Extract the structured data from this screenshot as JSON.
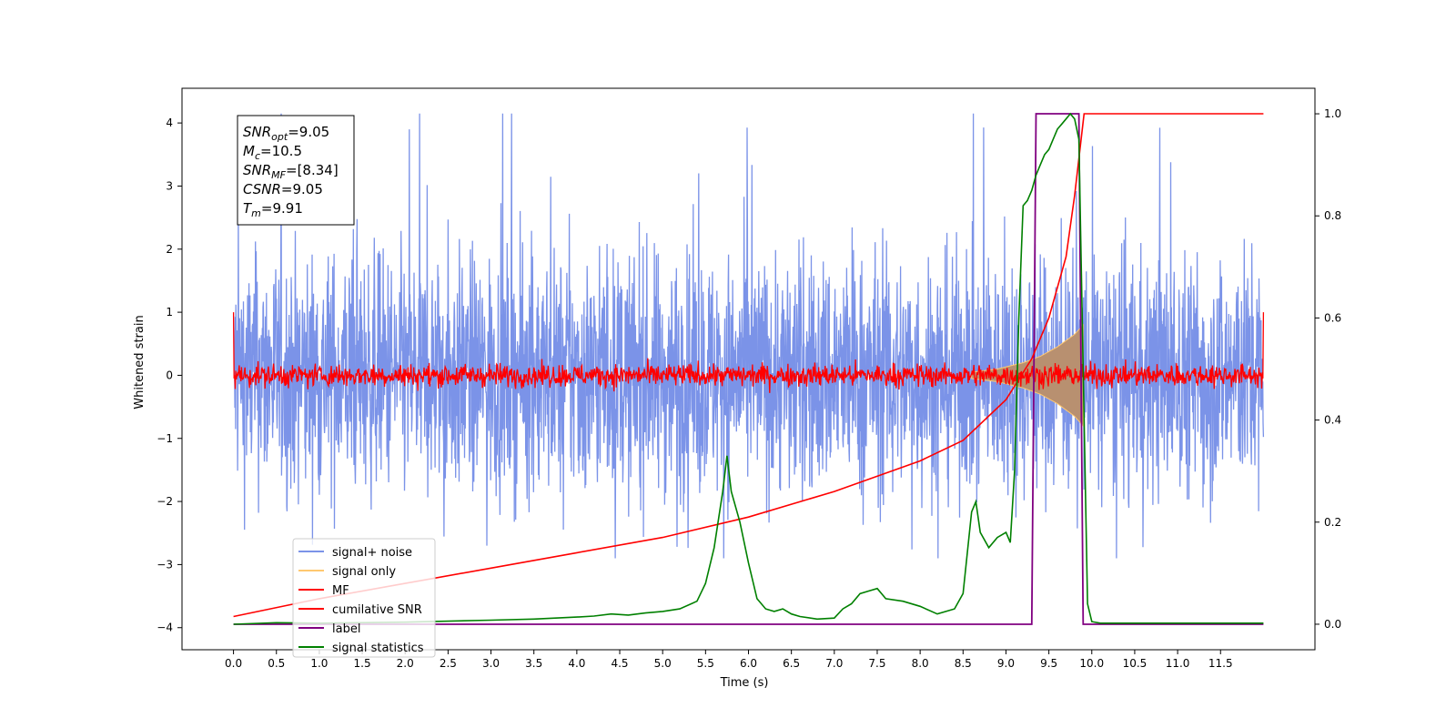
{
  "chart_data": {
    "type": "line",
    "xlabel": "Time (s)",
    "ylabel": "Whitened strain",
    "xlim": [
      -0.6,
      12.6
    ],
    "ylim_left": [
      -4.35,
      4.55
    ],
    "ylim_right": [
      -0.05,
      1.05
    ],
    "x_ticks": [
      "0.0",
      "0.5",
      "1.0",
      "1.5",
      "2.0",
      "2.5",
      "3.0",
      "3.5",
      "4.0",
      "4.5",
      "5.0",
      "5.5",
      "6.0",
      "6.5",
      "7.0",
      "7.5",
      "8.0",
      "8.5",
      "9.0",
      "9.5",
      "10.0",
      "10.5",
      "11.0",
      "11.5"
    ],
    "y_left_ticks": [
      "4",
      "3",
      "2",
      "1",
      "0",
      "−1",
      "−2",
      "−3",
      "−4"
    ],
    "y_right_ticks": [
      "1.0",
      "0.8",
      "0.6",
      "0.4",
      "0.2",
      "0.0"
    ],
    "grid": false,
    "legend_position": "lower-left",
    "annotation": {
      "lines": [
        {
          "var": "SNR",
          "sub": "opt",
          "val": "=9.05"
        },
        {
          "var": "M",
          "sub": "c",
          "val": "=10.5"
        },
        {
          "var": "SNR",
          "sub": "MF",
          "val": "=[8.34]"
        },
        {
          "var": "CSNR",
          "sub": "",
          "val": "=9.05"
        },
        {
          "var": "T",
          "sub": "m",
          "val": "=9.91"
        }
      ]
    },
    "series": [
      {
        "name": "signal+ noise",
        "color": "#7b93e8",
        "axis": "left",
        "x_range": [
          0.0,
          12.0
        ],
        "envelope": [
          -2.9,
          4.15
        ],
        "typical_amplitude": 1.6
      },
      {
        "name": "signal only",
        "color": "#ffc870",
        "axis": "left",
        "x": [
          8.6,
          8.9,
          9.2,
          9.4,
          9.6,
          9.8,
          9.9
        ],
        "y_amplitude": [
          0.05,
          0.1,
          0.2,
          0.3,
          0.45,
          0.65,
          0.8
        ]
      },
      {
        "name": "MF",
        "color": "#ff0000",
        "axis": "left",
        "x_range": [
          0.0,
          12.0
        ],
        "envelope": [
          -0.4,
          1.0
        ],
        "typical_amplitude": 0.2
      },
      {
        "name": "cumilative SNR",
        "color": "#ff0000",
        "axis": "right",
        "x": [
          0.0,
          1.0,
          2.0,
          3.0,
          4.0,
          5.0,
          6.0,
          7.0,
          8.0,
          8.5,
          9.0,
          9.3,
          9.5,
          9.7,
          9.8,
          9.91,
          12.0
        ],
        "y": [
          0.015,
          0.05,
          0.08,
          0.11,
          0.14,
          0.17,
          0.21,
          0.26,
          0.32,
          0.36,
          0.44,
          0.52,
          0.6,
          0.72,
          0.84,
          1.0,
          1.0
        ]
      },
      {
        "name": "label",
        "color": "#800080",
        "axis": "right",
        "x": [
          0.0,
          9.3,
          9.35,
          9.85,
          9.9,
          12.0
        ],
        "y": [
          0.0,
          0.0,
          1.0,
          1.0,
          0.0,
          0.0
        ]
      },
      {
        "name": "signal statistics",
        "color": "#008000",
        "axis": "right",
        "x": [
          0.0,
          0.5,
          1.0,
          2.0,
          3.0,
          3.5,
          4.0,
          4.2,
          4.4,
          4.6,
          4.8,
          5.0,
          5.2,
          5.4,
          5.5,
          5.6,
          5.7,
          5.75,
          5.8,
          5.9,
          6.0,
          6.1,
          6.2,
          6.3,
          6.4,
          6.5,
          6.6,
          6.8,
          7.0,
          7.1,
          7.2,
          7.3,
          7.4,
          7.5,
          7.6,
          7.8,
          8.0,
          8.2,
          8.4,
          8.5,
          8.6,
          8.65,
          8.7,
          8.8,
          8.9,
          9.0,
          9.05,
          9.1,
          9.15,
          9.2,
          9.25,
          9.3,
          9.35,
          9.4,
          9.45,
          9.5,
          9.55,
          9.6,
          9.65,
          9.7,
          9.75,
          9.8,
          9.85,
          9.9,
          9.95,
          10.0,
          10.1,
          11.0,
          12.0
        ],
        "y": [
          0.0,
          0.003,
          0.002,
          0.004,
          0.008,
          0.01,
          0.014,
          0.016,
          0.02,
          0.018,
          0.022,
          0.025,
          0.03,
          0.045,
          0.08,
          0.15,
          0.26,
          0.33,
          0.26,
          0.2,
          0.12,
          0.05,
          0.03,
          0.025,
          0.03,
          0.02,
          0.015,
          0.01,
          0.012,
          0.03,
          0.04,
          0.06,
          0.065,
          0.07,
          0.05,
          0.045,
          0.035,
          0.02,
          0.03,
          0.06,
          0.22,
          0.24,
          0.18,
          0.15,
          0.17,
          0.18,
          0.16,
          0.3,
          0.6,
          0.82,
          0.83,
          0.85,
          0.88,
          0.9,
          0.92,
          0.93,
          0.95,
          0.97,
          0.98,
          0.99,
          1.0,
          0.99,
          0.95,
          0.5,
          0.04,
          0.005,
          0.002,
          0.002,
          0.002
        ]
      }
    ]
  }
}
